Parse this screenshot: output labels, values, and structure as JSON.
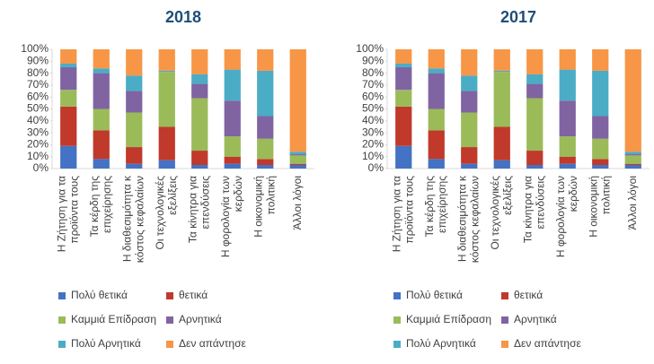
{
  "chart_data": [
    {
      "type": "stacked_bar",
      "title": "2018",
      "categories": [
        [
          "Η Ζήτηση για τα",
          "προϊόντα τους"
        ],
        [
          "Τα κέρδη της",
          "επιχείρησης"
        ],
        [
          "Η διαθεσιμότητα κ",
          "κόστος κεφαλαίων"
        ],
        [
          "Οι τεχνολογικές",
          "εξελίξεις"
        ],
        [
          "Τα κίνητρα για",
          "επενδύσεις"
        ],
        [
          "Η φορολογία των",
          "κερδών"
        ],
        [
          "Η οικονομική",
          "πολιτική"
        ],
        [
          "Άλλοι λόγοι"
        ]
      ],
      "series": [
        {
          "name": "Πολύ θετικά",
          "color": "#4472c4",
          "values": [
            19,
            8,
            4,
            7,
            3,
            4,
            3,
            3
          ]
        },
        {
          "name": "θετικά",
          "color": "#c0392b",
          "values": [
            33,
            24,
            14,
            28,
            12,
            6,
            5,
            1
          ]
        },
        {
          "name": "Καμμιά Επίδραση",
          "color": "#9bbb59",
          "values": [
            14,
            18,
            29,
            46,
            44,
            17,
            17,
            7
          ]
        },
        {
          "name": "Αρνητικά",
          "color": "#8064a2",
          "values": [
            19,
            30,
            18,
            0,
            12,
            30,
            19,
            1
          ]
        },
        {
          "name": "Πολύ Αρνητικά",
          "color": "#4bacc6",
          "values": [
            3,
            4,
            13,
            1,
            8,
            26,
            38,
            2
          ]
        },
        {
          "name": "Δεν απάντησε",
          "color": "#f79646",
          "values": [
            12,
            16,
            22,
            18,
            21,
            17,
            18,
            86
          ]
        }
      ],
      "ylim": [
        0,
        100
      ],
      "yticks": [
        {
          "value": 0,
          "label": "0%"
        },
        {
          "value": 10,
          "label": "10%"
        },
        {
          "value": 20,
          "label": "20%"
        },
        {
          "value": 30,
          "label": "30%"
        },
        {
          "value": 40,
          "label": "40%"
        },
        {
          "value": 50,
          "label": "50%"
        },
        {
          "value": 60,
          "label": "60%"
        },
        {
          "value": 70,
          "label": "70%"
        },
        {
          "value": 80,
          "label": "80%"
        },
        {
          "value": 90,
          "label": "90%"
        },
        {
          "value": 100,
          "label": "100%"
        }
      ]
    },
    {
      "type": "stacked_bar",
      "title": "2017",
      "categories": [
        [
          "Η Ζήτηση για τα",
          "προϊόντα τους"
        ],
        [
          "Τα κέρδη της",
          "επιχείρησης"
        ],
        [
          "Η διαθεσιμότητα κ",
          "κόστος κεφαλαίων"
        ],
        [
          "Οι τεχνολογικές",
          "εξελίξεις"
        ],
        [
          "Τα κίνητρα για",
          "επενδύσεις"
        ],
        [
          "Η φορολογία των",
          "κερδών"
        ],
        [
          "Η οικονομική",
          "πολιτική"
        ],
        [
          "Άλλοι λόγοι"
        ]
      ],
      "series": [
        {
          "name": "Πολύ θετικά",
          "color": "#4472c4",
          "values": [
            19,
            8,
            4,
            7,
            3,
            4,
            3,
            3
          ]
        },
        {
          "name": "θετικά",
          "color": "#c0392b",
          "values": [
            33,
            24,
            14,
            28,
            12,
            6,
            5,
            1
          ]
        },
        {
          "name": "Καμμιά Επίδραση",
          "color": "#9bbb59",
          "values": [
            14,
            18,
            29,
            46,
            44,
            17,
            17,
            7
          ]
        },
        {
          "name": "Αρνητικά",
          "color": "#8064a2",
          "values": [
            19,
            30,
            18,
            0,
            12,
            30,
            19,
            1
          ]
        },
        {
          "name": "Πολύ Αρνητικά",
          "color": "#4bacc6",
          "values": [
            3,
            4,
            13,
            1,
            8,
            26,
            38,
            2
          ]
        },
        {
          "name": "Δεν απάντησε",
          "color": "#f79646",
          "values": [
            12,
            16,
            22,
            18,
            21,
            17,
            18,
            86
          ]
        }
      ],
      "ylim": [
        0,
        100
      ],
      "yticks": [
        {
          "value": 0,
          "label": "0%"
        },
        {
          "value": 10,
          "label": "10%"
        },
        {
          "value": 20,
          "label": "20%"
        },
        {
          "value": 30,
          "label": "30%"
        },
        {
          "value": 40,
          "label": "40%"
        },
        {
          "value": 50,
          "label": "50%"
        },
        {
          "value": 60,
          "label": "60%"
        },
        {
          "value": 70,
          "label": "70%"
        },
        {
          "value": 80,
          "label": "80%"
        },
        {
          "value": 90,
          "label": "90%"
        },
        {
          "value": 100,
          "label": "100%"
        }
      ]
    }
  ]
}
